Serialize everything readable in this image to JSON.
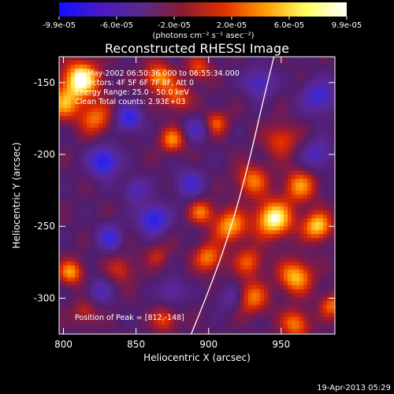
{
  "colorbar": {
    "ticks": [
      "-9.9e-05",
      "-6.0e-05",
      "-2.0e-05",
      "2.0e-05",
      "6.0e-05",
      "9.9e-05"
    ],
    "units": "(photons cm⁻² s⁻¹ asec⁻²)",
    "colors": [
      "#1010ff",
      "#4a18c8",
      "#5a2a8a",
      "#8a1a30",
      "#e03000",
      "#ff9a00",
      "#ffff60",
      "#ffffff"
    ]
  },
  "chart_data": {
    "type": "heatmap",
    "title": "Reconstructed RHESSI Image",
    "xlabel": "Heliocentric X (arcsec)",
    "ylabel": "Heliocentric Y (arcsec)",
    "xlim": [
      797,
      987
    ],
    "ylim": [
      -325,
      -132
    ],
    "xticks": [
      800,
      850,
      900,
      950
    ],
    "yticks": [
      -150,
      -200,
      -250,
      -300
    ],
    "zrange": [
      -9.9e-05,
      9.9e-05
    ],
    "annotations": [
      "01-May-2002 06:50:36.000 to 06:55:34.000",
      "Detectors: 4F 5F 6F 7F 8F, Att 0",
      "Energy Range: 25.0 - 50.0 keV",
      "Clean    Total counts: 2.93E+03",
      "Position of Peak = [812,-148]"
    ],
    "peak": [
      812,
      -148
    ],
    "limb_curve": [
      [
        888,
        -325
      ],
      [
        900,
        -295
      ],
      [
        912,
        -262
      ],
      [
        922,
        -228
      ],
      [
        930,
        -196
      ],
      [
        937,
        -165
      ],
      [
        945,
        -132
      ]
    ],
    "blobs": [
      {
        "x": 812,
        "y": -148,
        "z": 1.0,
        "s": 9
      },
      {
        "x": 800,
        "y": -165,
        "z": 0.6,
        "s": 8
      },
      {
        "x": 822,
        "y": -175,
        "z": 0.55,
        "s": 8
      },
      {
        "x": 865,
        "y": -146,
        "z": 0.65,
        "s": 7
      },
      {
        "x": 878,
        "y": -160,
        "z": 0.5,
        "s": 7
      },
      {
        "x": 893,
        "y": -140,
        "z": 0.45,
        "s": 6
      },
      {
        "x": 905,
        "y": -178,
        "z": 0.5,
        "s": 6
      },
      {
        "x": 875,
        "y": -190,
        "z": 0.6,
        "s": 6
      },
      {
        "x": 950,
        "y": -190,
        "z": 0.45,
        "s": 8
      },
      {
        "x": 930,
        "y": -218,
        "z": 0.55,
        "s": 8
      },
      {
        "x": 963,
        "y": -222,
        "z": 0.6,
        "s": 8
      },
      {
        "x": 945,
        "y": -245,
        "z": 0.95,
        "s": 9
      },
      {
        "x": 975,
        "y": -250,
        "z": 0.8,
        "s": 7
      },
      {
        "x": 915,
        "y": -250,
        "z": 0.7,
        "s": 8
      },
      {
        "x": 895,
        "y": -240,
        "z": 0.55,
        "s": 6
      },
      {
        "x": 900,
        "y": -272,
        "z": 0.6,
        "s": 7
      },
      {
        "x": 928,
        "y": -275,
        "z": 0.5,
        "s": 7
      },
      {
        "x": 960,
        "y": -285,
        "z": 0.75,
        "s": 8
      },
      {
        "x": 930,
        "y": -300,
        "z": 0.55,
        "s": 8
      },
      {
        "x": 960,
        "y": -318,
        "z": 0.6,
        "s": 7
      },
      {
        "x": 985,
        "y": -305,
        "z": 0.55,
        "s": 6
      },
      {
        "x": 870,
        "y": -315,
        "z": 0.45,
        "s": 6
      },
      {
        "x": 840,
        "y": -280,
        "z": 0.35,
        "s": 7
      },
      {
        "x": 805,
        "y": -282,
        "z": 0.65,
        "s": 6
      },
      {
        "x": 815,
        "y": -310,
        "z": 0.35,
        "s": 6
      },
      {
        "x": 865,
        "y": -270,
        "z": 0.3,
        "s": 6
      },
      {
        "x": 845,
        "y": -175,
        "z": -0.75,
        "s": 6
      },
      {
        "x": 828,
        "y": -205,
        "z": -0.85,
        "s": 7
      },
      {
        "x": 862,
        "y": -245,
        "z": -0.8,
        "s": 7
      },
      {
        "x": 832,
        "y": -258,
        "z": -0.6,
        "s": 6
      },
      {
        "x": 887,
        "y": -220,
        "z": -0.5,
        "s": 7
      },
      {
        "x": 892,
        "y": -182,
        "z": -0.45,
        "s": 6
      },
      {
        "x": 976,
        "y": -160,
        "z": -0.6,
        "s": 8
      },
      {
        "x": 935,
        "y": -150,
        "z": -0.55,
        "s": 7
      },
      {
        "x": 975,
        "y": -200,
        "z": -0.5,
        "s": 7
      },
      {
        "x": 915,
        "y": -300,
        "z": -0.35,
        "s": 6
      },
      {
        "x": 875,
        "y": -295,
        "z": -0.4,
        "s": 6
      },
      {
        "x": 825,
        "y": -295,
        "z": -0.4,
        "s": 6
      },
      {
        "x": 850,
        "y": -225,
        "z": -0.45,
        "s": 6
      }
    ]
  },
  "footer": {
    "date": "19-Apr-2013 05:29"
  }
}
